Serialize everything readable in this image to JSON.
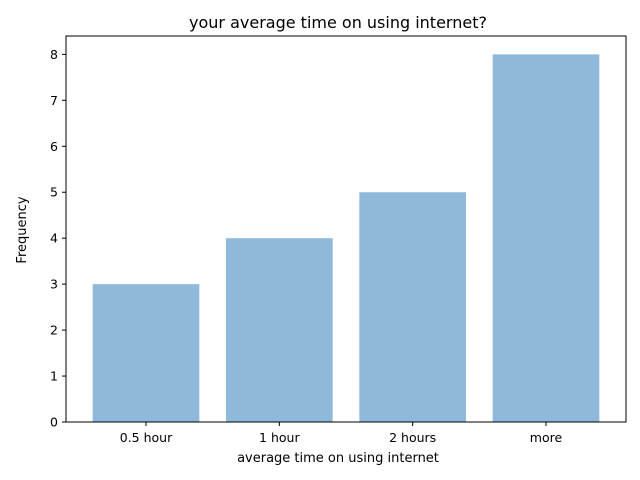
{
  "chart_data": {
    "type": "bar",
    "title": "your average time on using internet?",
    "xlabel": "average time on using internet",
    "ylabel": "Frequency",
    "categories": [
      "0.5 hour",
      "1 hour",
      "2 hours",
      "more"
    ],
    "values": [
      3,
      4,
      5,
      8
    ],
    "ylim": [
      0,
      8.4
    ],
    "yticks": [
      0,
      1,
      2,
      3,
      4,
      5,
      6,
      7,
      8
    ],
    "grid": false,
    "legend": "none",
    "bar_color": "#8fb9da"
  }
}
